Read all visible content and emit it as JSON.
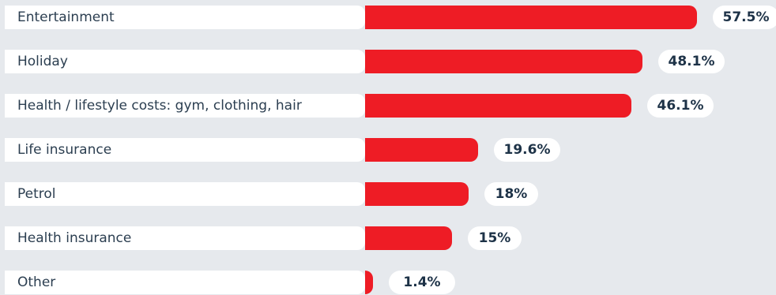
{
  "colors": {
    "background": "#e6e9ed",
    "bar": "#ee1c25",
    "pill": "#ffffff",
    "label_text": "#2b3e50",
    "value_text": "#1d3247"
  },
  "chart_data": {
    "type": "bar",
    "orientation": "horizontal",
    "title": "",
    "xlabel": "",
    "ylabel": "",
    "grid": false,
    "legend": "none",
    "xlim": [
      0,
      57.5
    ],
    "categories": [
      "Entertainment",
      "Holiday",
      "Health / lifestyle costs: gym, clothing, hair",
      "Life insurance",
      "Petrol",
      "Health insurance",
      "Other"
    ],
    "values": [
      57.5,
      48.1,
      46.1,
      19.6,
      18,
      15,
      1.4
    ],
    "data_labels": [
      "57.5%",
      "48.1%",
      "46.1%",
      "19.6%",
      "18%",
      "15%",
      "1.4%"
    ]
  }
}
